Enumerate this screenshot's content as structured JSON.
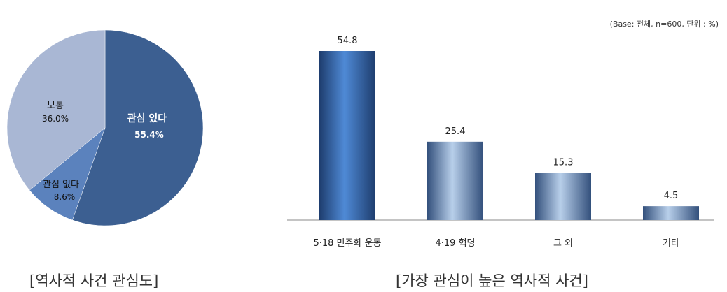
{
  "chart_data": [
    {
      "type": "pie",
      "slices": [
        {
          "label": "관심 있다",
          "value": 55.4,
          "value_label": "55.4%",
          "color": "#3c5f91"
        },
        {
          "label": "관심 없다",
          "value": 8.6,
          "value_label": "8.6%",
          "color": "#5b82bd"
        },
        {
          "label": "보통",
          "value": 36.0,
          "value_label": "36.0%",
          "color": "#a9b7d4"
        }
      ],
      "caption": "[역사적 사건 관심도]"
    },
    {
      "type": "bar",
      "categories": [
        "5·18 민주화 운동",
        "4·19 혁명",
        "그 외",
        "기타"
      ],
      "values": [
        54.8,
        25.4,
        15.3,
        4.5
      ],
      "value_labels": [
        "54.8",
        "25.4",
        "15.3",
        "4.5"
      ],
      "base_note": "(Base: 전체, n=600, 단위 : %)",
      "caption": "[가장 관심이 높은 역사적 사건]",
      "ylim": [
        0,
        54.8
      ],
      "grid": false
    }
  ]
}
